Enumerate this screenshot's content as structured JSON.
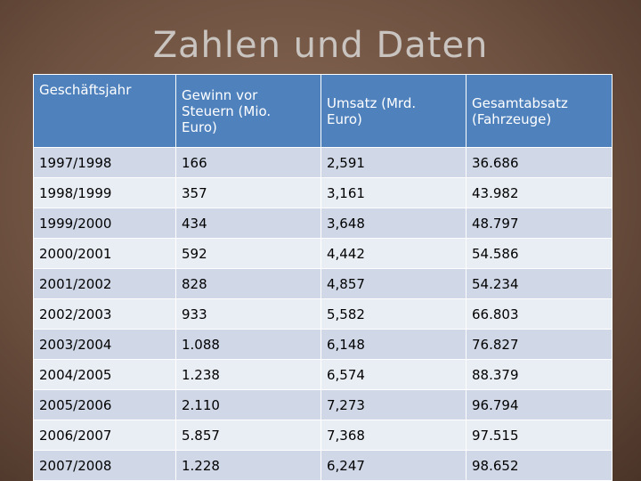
{
  "title": "Zahlen und Daten",
  "table": {
    "header": [
      "Geschäftsjahr",
      "Gewinn vor Steuern (Mio. Euro)",
      "Umsatz (Mrd. Euro)",
      "Gesamtabsatz (Fahrzeuge)"
    ],
    "rows": [
      [
        "1997/1998",
        "166",
        "2,591",
        "36.686"
      ],
      [
        "1998/1999",
        "357",
        "3,161",
        "43.982"
      ],
      [
        "1999/2000",
        "434",
        "3,648",
        "48.797"
      ],
      [
        "2000/2001",
        "592",
        "4,442",
        "54.586"
      ],
      [
        "2001/2002",
        "828",
        "4,857",
        "54.234"
      ],
      [
        "2002/2003",
        "933",
        "5,582",
        "66.803"
      ],
      [
        "2003/2004",
        "1.088",
        "6,148",
        "76.827"
      ],
      [
        "2004/2005",
        "1.238",
        "6,574",
        "88.379"
      ],
      [
        "2005/2006",
        "2.110",
        "7,273",
        "96.794"
      ],
      [
        "2006/2007",
        "5.857",
        "7,368",
        "97.515"
      ],
      [
        "2007/2008",
        "1.228",
        "6,247",
        "98.652"
      ]
    ]
  }
}
